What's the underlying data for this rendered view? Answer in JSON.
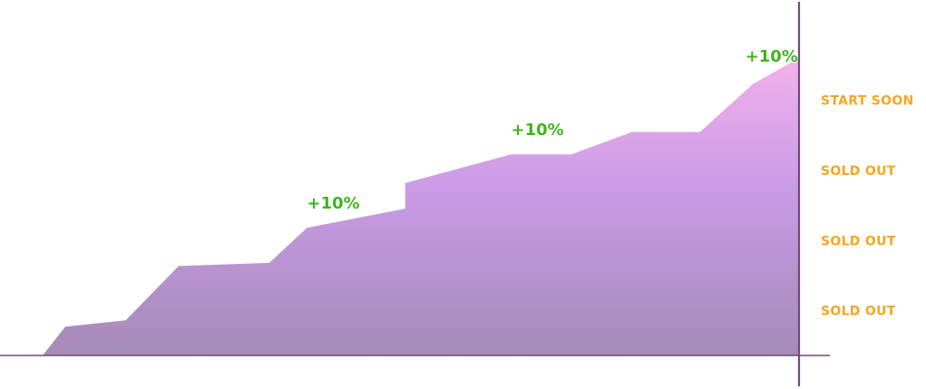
{
  "chart_data": {
    "type": "area",
    "title": "",
    "xlabel": "",
    "ylabel": "",
    "grid": false,
    "legend": "none",
    "ylim": [
      0,
      100
    ],
    "xlim": [
      0,
      100
    ],
    "points": [
      {
        "x": 0,
        "y": 0
      },
      {
        "x": 3,
        "y": 9
      },
      {
        "x": 11,
        "y": 11
      },
      {
        "x": 18,
        "y": 28
      },
      {
        "x": 30,
        "y": 29
      },
      {
        "x": 35,
        "y": 40
      },
      {
        "x": 48,
        "y": 46
      },
      {
        "x": 48,
        "y": 54
      },
      {
        "x": 62,
        "y": 63
      },
      {
        "x": 70,
        "y": 63
      },
      {
        "x": 78,
        "y": 70
      },
      {
        "x": 87,
        "y": 70
      },
      {
        "x": 94,
        "y": 85
      },
      {
        "x": 100,
        "y": 93
      }
    ],
    "annotations": [
      {
        "text": "+10%",
        "x": 35,
        "y": 46
      },
      {
        "text": "+10%",
        "x": 62,
        "y": 69
      },
      {
        "text": "+10%",
        "x": 93,
        "y": 92
      }
    ],
    "stage_labels": [
      {
        "text": "START SOON",
        "y": 80
      },
      {
        "text": "SOLD OUT",
        "y": 58
      },
      {
        "text": "SOLD OUT",
        "y": 36
      },
      {
        "text": "SOLD OUT",
        "y": 14
      }
    ],
    "colors": {
      "fill_top": "#f2b1ec",
      "fill_mid": "#c99ae6",
      "fill_bottom": "#a58bb6",
      "axis": "#6f4a7a",
      "gain_text": "#3cb514",
      "stage_text": "#f5a623"
    }
  }
}
